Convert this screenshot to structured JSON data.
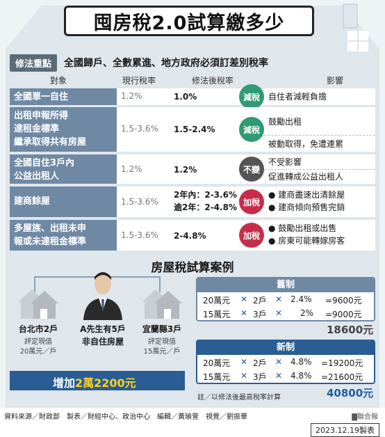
{
  "title": "囤房稅2.0試算繳多少",
  "strip": {
    "tag": "修法重點",
    "text": "全國歸戶、全數累進、地方政府必須訂差別稅率"
  },
  "headers": [
    "對象",
    "現行稅率",
    "修法後稅率",
    "影響"
  ],
  "rows": [
    {
      "obj": [
        "全國單一自住"
      ],
      "cur": "1.2%",
      "new": [
        "1.0%"
      ],
      "badge": "減稅",
      "effect": [
        "自住者減輕負擔"
      ]
    },
    {
      "obj": [
        "出租申報所得",
        "達租金標準",
        "繼承取得共有房屋"
      ],
      "cur": "1.5-3.6%",
      "new": [
        "1.5-2.4%"
      ],
      "badge": "減稅",
      "effect": [
        "鼓勵出租",
        "被動取得，免遭連累"
      ]
    },
    {
      "obj": [
        "全國自住3戶內",
        "公益出租人"
      ],
      "cur": "1.2%",
      "new": [
        "1.2%"
      ],
      "badge": "不變",
      "effect": [
        "不受影響",
        "促進轉成公益出租人"
      ]
    },
    {
      "obj": [
        "建商餘屋"
      ],
      "cur": "1.5-3.6%",
      "new": [
        "2年內：2-3.6%",
        "逾2年：2-4.8%"
      ],
      "badge": "加稅",
      "effect": [
        "● 建商盡速出清餘屋",
        "● 建商傾向預售完銷"
      ]
    },
    {
      "obj": [
        "多屋族、出租未申",
        "報或未達租金標準"
      ],
      "cur": "1.5-3.6%",
      "new": [
        "2-4.8%"
      ],
      "badge": "加稅",
      "effect": [
        "● 鼓勵出租或出售",
        "● 房東可能轉嫁房客"
      ]
    }
  ],
  "case_title": "房屋稅試算案例",
  "person": {
    "name": "A先生有5戶",
    "sub": "非自住房屋"
  },
  "cities": [
    {
      "name": "台北市2戶",
      "note1": "評定現值",
      "note2": "20萬元／戶"
    },
    {
      "name": "宜蘭縣3戶",
      "note1": "評定現值",
      "note2": "15萬元／戶"
    }
  ],
  "old": {
    "head": "舊制",
    "lines": [
      [
        "20萬元",
        "2戶",
        "2.4%",
        "=9600元"
      ],
      [
        "15萬元",
        "3戶",
        "2%",
        "=9000元"
      ]
    ],
    "total": "18600元"
  },
  "new": {
    "head": "新制",
    "lines": [
      [
        "20萬元",
        "2戶",
        "4.8%",
        "=19200元"
      ],
      [
        "15萬元",
        "3戶",
        "4.8%",
        "=21600元"
      ]
    ],
    "total": "40800元"
  },
  "increase": {
    "prefix": "增加",
    "amount": "2萬2200元"
  },
  "note": "註／以修法後最高稅率計算",
  "footer": {
    "source": "資料來源／財政部　製表／財經中心、政治中心　編輯／黃瑜萱　視覺／劉振華",
    "brand": "▇聯合報",
    "date": "2023.12.19製表"
  },
  "colors": {
    "accent": "#6f88a4",
    "green": "#2f9b72",
    "red": "#c62d4b",
    "blue": "#2a5d93"
  }
}
